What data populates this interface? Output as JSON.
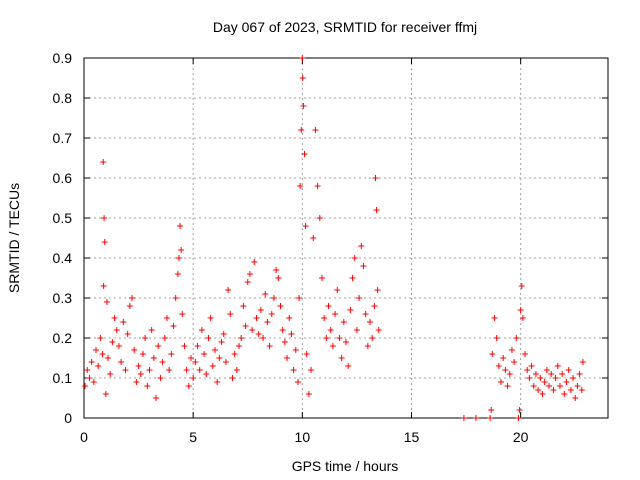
{
  "chart_data": {
    "type": "scatter",
    "title": "Day 067 of 2023, SRMTID for receiver ffmj",
    "xlabel": "GPS time / hours",
    "ylabel": "SRMTID / TECUs",
    "xlim": [
      0,
      24
    ],
    "ylim": [
      0,
      0.9
    ],
    "xticks": [
      "0",
      "5",
      "10",
      "15",
      "20"
    ],
    "yticks": [
      "0",
      "0.1",
      "0.2",
      "0.3",
      "0.4",
      "0.5",
      "0.6",
      "0.7",
      "0.8",
      "0.9"
    ],
    "grid": true,
    "marker": "+",
    "color": "#ff0000",
    "series": [
      {
        "name": "SRMTID",
        "points": [
          [
            0.05,
            0.08
          ],
          [
            0.15,
            0.12
          ],
          [
            0.25,
            0.1
          ],
          [
            0.35,
            0.14
          ],
          [
            0.45,
            0.09
          ],
          [
            0.55,
            0.17
          ],
          [
            0.65,
            0.13
          ],
          [
            0.75,
            0.2
          ],
          [
            0.85,
            0.16
          ],
          [
            0.88,
            0.64
          ],
          [
            0.9,
            0.33
          ],
          [
            0.92,
            0.5
          ],
          [
            0.95,
            0.44
          ],
          [
            1.0,
            0.06
          ],
          [
            1.05,
            0.29
          ],
          [
            1.1,
            0.15
          ],
          [
            1.2,
            0.11
          ],
          [
            1.3,
            0.19
          ],
          [
            1.4,
            0.25
          ],
          [
            1.5,
            0.22
          ],
          [
            1.6,
            0.18
          ],
          [
            1.7,
            0.14
          ],
          [
            1.8,
            0.24
          ],
          [
            1.9,
            0.12
          ],
          [
            2.0,
            0.21
          ],
          [
            2.1,
            0.28
          ],
          [
            2.2,
            0.3
          ],
          [
            2.3,
            0.17
          ],
          [
            2.4,
            0.09
          ],
          [
            2.5,
            0.13
          ],
          [
            2.6,
            0.11
          ],
          [
            2.7,
            0.16
          ],
          [
            2.8,
            0.2
          ],
          [
            2.9,
            0.08
          ],
          [
            3.0,
            0.12
          ],
          [
            3.1,
            0.22
          ],
          [
            3.2,
            0.15
          ],
          [
            3.3,
            0.05
          ],
          [
            3.4,
            0.18
          ],
          [
            3.5,
            0.1
          ],
          [
            3.6,
            0.14
          ],
          [
            3.7,
            0.2
          ],
          [
            3.8,
            0.25
          ],
          [
            3.9,
            0.12
          ],
          [
            4.0,
            0.16
          ],
          [
            4.1,
            0.23
          ],
          [
            4.2,
            0.3
          ],
          [
            4.3,
            0.36
          ],
          [
            4.35,
            0.4
          ],
          [
            4.4,
            0.48
          ],
          [
            4.45,
            0.42
          ],
          [
            4.5,
            0.26
          ],
          [
            4.6,
            0.18
          ],
          [
            4.7,
            0.12
          ],
          [
            4.8,
            0.08
          ],
          [
            4.9,
            0.15
          ],
          [
            5.0,
            0.1
          ],
          [
            5.1,
            0.14
          ],
          [
            5.2,
            0.18
          ],
          [
            5.3,
            0.12
          ],
          [
            5.4,
            0.22
          ],
          [
            5.5,
            0.16
          ],
          [
            5.6,
            0.11
          ],
          [
            5.7,
            0.2
          ],
          [
            5.8,
            0.25
          ],
          [
            5.9,
            0.13
          ],
          [
            6.0,
            0.17
          ],
          [
            6.1,
            0.09
          ],
          [
            6.2,
            0.15
          ],
          [
            6.3,
            0.19
          ],
          [
            6.4,
            0.21
          ],
          [
            6.5,
            0.14
          ],
          [
            6.6,
            0.32
          ],
          [
            6.7,
            0.26
          ],
          [
            6.8,
            0.1
          ],
          [
            6.9,
            0.16
          ],
          [
            7.0,
            0.12
          ],
          [
            7.1,
            0.18
          ],
          [
            7.2,
            0.2
          ],
          [
            7.3,
            0.28
          ],
          [
            7.4,
            0.23
          ],
          [
            7.5,
            0.34
          ],
          [
            7.6,
            0.36
          ],
          [
            7.7,
            0.22
          ],
          [
            7.8,
            0.39
          ],
          [
            7.9,
            0.25
          ],
          [
            8.0,
            0.21
          ],
          [
            8.1,
            0.27
          ],
          [
            8.2,
            0.2
          ],
          [
            8.3,
            0.31
          ],
          [
            8.4,
            0.24
          ],
          [
            8.5,
            0.18
          ],
          [
            8.6,
            0.26
          ],
          [
            8.7,
            0.3
          ],
          [
            8.8,
            0.37
          ],
          [
            8.9,
            0.35
          ],
          [
            9.0,
            0.28
          ],
          [
            9.1,
            0.22
          ],
          [
            9.2,
            0.19
          ],
          [
            9.3,
            0.15
          ],
          [
            9.4,
            0.25
          ],
          [
            9.5,
            0.21
          ],
          [
            9.6,
            0.12
          ],
          [
            9.7,
            0.17
          ],
          [
            9.8,
            0.09
          ],
          [
            9.85,
            0.3
          ],
          [
            9.9,
            0.58
          ],
          [
            9.95,
            0.72
          ],
          [
            10.0,
            0.9
          ],
          [
            10.02,
            0.85
          ],
          [
            10.05,
            0.78
          ],
          [
            10.1,
            0.66
          ],
          [
            10.15,
            0.48
          ],
          [
            10.2,
            0.16
          ],
          [
            10.3,
            0.06
          ],
          [
            10.4,
            0.12
          ],
          [
            10.5,
            0.45
          ],
          [
            10.6,
            0.72
          ],
          [
            10.7,
            0.58
          ],
          [
            10.8,
            0.5
          ],
          [
            10.9,
            0.35
          ],
          [
            11.0,
            0.25
          ],
          [
            11.1,
            0.2
          ],
          [
            11.2,
            0.28
          ],
          [
            11.3,
            0.22
          ],
          [
            11.4,
            0.18
          ],
          [
            11.5,
            0.26
          ],
          [
            11.6,
            0.32
          ],
          [
            11.7,
            0.2
          ],
          [
            11.8,
            0.15
          ],
          [
            11.9,
            0.24
          ],
          [
            12.0,
            0.19
          ],
          [
            12.1,
            0.13
          ],
          [
            12.2,
            0.27
          ],
          [
            12.3,
            0.35
          ],
          [
            12.4,
            0.4
          ],
          [
            12.5,
            0.22
          ],
          [
            12.6,
            0.3
          ],
          [
            12.7,
            0.43
          ],
          [
            12.8,
            0.38
          ],
          [
            12.9,
            0.26
          ],
          [
            13.0,
            0.18
          ],
          [
            13.1,
            0.24
          ],
          [
            13.2,
            0.2
          ],
          [
            13.3,
            0.28
          ],
          [
            13.35,
            0.6
          ],
          [
            13.4,
            0.52
          ],
          [
            13.45,
            0.32
          ],
          [
            13.5,
            0.22
          ],
          [
            17.4,
            0.0
          ],
          [
            17.95,
            0.0
          ],
          [
            18.6,
            0.0
          ],
          [
            18.65,
            0.02
          ],
          [
            18.7,
            0.16
          ],
          [
            18.8,
            0.25
          ],
          [
            18.9,
            0.2
          ],
          [
            19.0,
            0.13
          ],
          [
            19.1,
            0.09
          ],
          [
            19.2,
            0.15
          ],
          [
            19.3,
            0.12
          ],
          [
            19.4,
            0.08
          ],
          [
            19.5,
            0.11
          ],
          [
            19.6,
            0.17
          ],
          [
            19.7,
            0.14
          ],
          [
            19.8,
            0.2
          ],
          [
            19.9,
            0.0
          ],
          [
            19.95,
            0.02
          ],
          [
            20.0,
            0.27
          ],
          [
            20.05,
            0.33
          ],
          [
            20.1,
            0.25
          ],
          [
            20.2,
            0.16
          ],
          [
            20.3,
            0.12
          ],
          [
            20.4,
            0.1
          ],
          [
            20.5,
            0.13
          ],
          [
            20.6,
            0.08
          ],
          [
            20.7,
            0.11
          ],
          [
            20.8,
            0.07
          ],
          [
            20.9,
            0.1
          ],
          [
            21.0,
            0.06
          ],
          [
            21.1,
            0.09
          ],
          [
            21.2,
            0.12
          ],
          [
            21.3,
            0.08
          ],
          [
            21.4,
            0.11
          ],
          [
            21.5,
            0.07
          ],
          [
            21.6,
            0.1
          ],
          [
            21.7,
            0.13
          ],
          [
            21.8,
            0.08
          ],
          [
            21.9,
            0.11
          ],
          [
            22.0,
            0.06
          ],
          [
            22.1,
            0.09
          ],
          [
            22.2,
            0.12
          ],
          [
            22.3,
            0.07
          ],
          [
            22.4,
            0.1
          ],
          [
            22.5,
            0.05
          ],
          [
            22.6,
            0.08
          ],
          [
            22.7,
            0.11
          ],
          [
            22.8,
            0.07
          ],
          [
            22.85,
            0.14
          ]
        ]
      }
    ]
  }
}
